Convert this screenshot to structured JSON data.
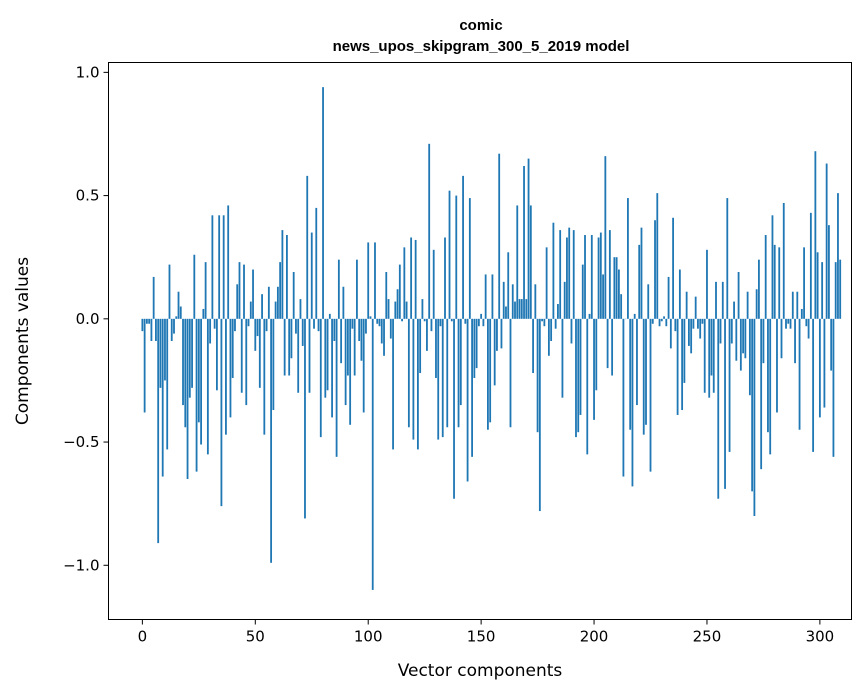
{
  "chart_data": {
    "type": "bar",
    "title": "comic",
    "subtitle": "news_upos_skipgram_300_5_2019 model",
    "xlabel": "Vector components",
    "ylabel": "Components values",
    "xlim": [
      -15,
      314
    ],
    "ylim": [
      -1.22,
      1.04
    ],
    "xticks": [
      0,
      50,
      100,
      150,
      200,
      250,
      300
    ],
    "xtick_labels": [
      "0",
      "50",
      "100",
      "150",
      "200",
      "250",
      "300"
    ],
    "yticks": [
      -1.0,
      -0.5,
      0.0,
      0.5,
      1.0
    ],
    "ytick_labels": [
      "−1.0",
      "−0.5",
      "0.0",
      "0.5",
      "1.0"
    ],
    "bar_color": "#1f77b4",
    "values": [
      -0.05,
      -0.38,
      -0.02,
      -0.02,
      -0.09,
      0.17,
      -0.09,
      -0.91,
      -0.28,
      -0.64,
      -0.25,
      -0.53,
      0.22,
      -0.09,
      -0.06,
      0.01,
      0.11,
      0.05,
      -0.35,
      -0.44,
      -0.65,
      -0.32,
      -0.28,
      0.26,
      -0.62,
      -0.42,
      -0.51,
      0.04,
      0.23,
      -0.55,
      -0.1,
      0.42,
      -0.04,
      -0.29,
      0.42,
      -0.76,
      0.42,
      -0.47,
      0.46,
      -0.4,
      -0.24,
      -0.05,
      0.14,
      0.23,
      -0.3,
      0.22,
      -0.35,
      -0.03,
      0.07,
      0.2,
      -0.13,
      -0.07,
      -0.28,
      0.1,
      -0.47,
      -0.05,
      0.13,
      -0.99,
      -0.37,
      0.07,
      0.13,
      0.23,
      0.36,
      -0.23,
      0.34,
      -0.23,
      -0.16,
      0.19,
      -0.06,
      -0.3,
      0.08,
      -0.11,
      -0.81,
      0.58,
      -0.3,
      0.35,
      -0.04,
      0.45,
      -0.05,
      -0.48,
      0.94,
      -0.32,
      -0.29,
      0.02,
      -0.4,
      -0.09,
      -0.56,
      0.24,
      -0.18,
      0.13,
      -0.35,
      -0.23,
      -0.43,
      -0.04,
      -0.23,
      0.24,
      -0.09,
      -0.17,
      -0.38,
      -0.06,
      0.31,
      0.01,
      -1.1,
      0.31,
      -0.02,
      -0.03,
      -0.1,
      -0.15,
      0.19,
      0.08,
      -0.08,
      -0.53,
      0.07,
      0.12,
      0.22,
      -0.01,
      0.29,
      0.07,
      -0.44,
      0.33,
      -0.49,
      0.32,
      -0.53,
      -0.22,
      0.08,
      -0.01,
      -0.13,
      0.71,
      -0.05,
      0.28,
      -0.24,
      -0.49,
      -0.03,
      -0.48,
      0.33,
      -0.44,
      0.52,
      -0.01,
      -0.73,
      0.5,
      -0.44,
      -0.35,
      0.58,
      -0.02,
      -0.66,
      0.49,
      -0.56,
      -0.24,
      -0.2,
      -0.03,
      0.02,
      -0.03,
      0.18,
      -0.45,
      -0.42,
      0.18,
      -0.27,
      -0.13,
      0.67,
      -0.12,
      0.15,
      0.05,
      0.27,
      -0.44,
      0.14,
      0.07,
      0.46,
      0.08,
      0.08,
      0.62,
      0.08,
      0.65,
      0.46,
      -0.22,
      0.14,
      -0.46,
      -0.78,
      -0.01,
      -0.03,
      0.29,
      -0.15,
      -0.09,
      0.39,
      -0.04,
      0.06,
      0.36,
      -0.32,
      0.15,
      0.33,
      0.37,
      -0.1,
      0.36,
      -0.48,
      -0.46,
      -0.39,
      0.22,
      0.34,
      -0.55,
      0.02,
      0.34,
      -0.41,
      -0.29,
      0.33,
      0.35,
      0.18,
      0.66,
      -0.2,
      0.36,
      -0.23,
      0.25,
      0.25,
      0.2,
      0.1,
      -0.64,
      0.0,
      0.49,
      -0.45,
      -0.68,
      0.02,
      -0.35,
      0.3,
      0.37,
      -0.47,
      -0.43,
      0.14,
      -0.62,
      -0.02,
      0.4,
      0.51,
      -0.03,
      -0.01,
      0.01,
      -0.03,
      0.17,
      -0.12,
      0.41,
      -0.05,
      -0.39,
      0.2,
      -0.37,
      -0.26,
      0.11,
      -0.11,
      -0.14,
      -0.04,
      0.09,
      -0.04,
      -0.08,
      -0.02,
      -0.3,
      0.28,
      -0.32,
      -0.23,
      -0.3,
      0.15,
      -0.73,
      -0.1,
      0.15,
      -0.69,
      0.49,
      -0.54,
      -0.1,
      0.07,
      -0.17,
      0.19,
      -0.21,
      -0.14,
      -0.16,
      0.11,
      -0.31,
      -0.7,
      -0.8,
      0.12,
      0.24,
      -0.61,
      -0.18,
      0.34,
      -0.46,
      -0.55,
      0.42,
      0.3,
      -0.38,
      0.29,
      -0.16,
      0.47,
      -0.04,
      -0.02,
      -0.04,
      0.11,
      -0.18,
      0.11,
      -0.45,
      0.04,
      0.29,
      -0.03,
      -0.08,
      0.43,
      -0.54,
      0.68,
      0.27,
      -0.4,
      0.23,
      -0.36,
      0.63,
      0.38,
      -0.21,
      -0.56,
      0.23,
      0.51,
      0.24
    ]
  }
}
